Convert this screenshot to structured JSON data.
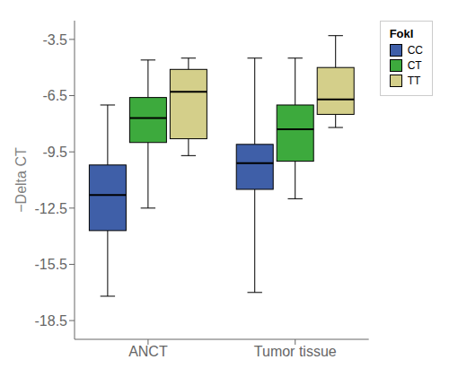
{
  "chart_data": {
    "type": "box",
    "categories": [
      "ANCT",
      "Tumor tissue"
    ],
    "series": [
      {
        "name": "CC",
        "color": "#3F5FA8",
        "values": [
          {
            "whislo": -17.2,
            "q1": -13.7,
            "med": -11.8,
            "q3": -10.2,
            "whishi": -7.0
          },
          {
            "whislo": -17.0,
            "q1": -11.5,
            "med": -10.1,
            "q3": -9.1,
            "whishi": -4.5
          }
        ]
      },
      {
        "name": "CT",
        "color": "#3DAA3D",
        "values": [
          {
            "whislo": -12.5,
            "q1": -9.0,
            "med": -7.7,
            "q3": -6.6,
            "whishi": -4.6
          },
          {
            "whislo": -12.0,
            "q1": -10.0,
            "med": -8.3,
            "q3": -7.0,
            "whishi": -4.5
          }
        ]
      },
      {
        "name": "TT",
        "color": "#D4CF8A",
        "values": [
          {
            "whislo": -9.7,
            "q1": -8.8,
            "med": -6.3,
            "q3": -5.1,
            "whishi": -4.5
          },
          {
            "whislo": -8.2,
            "q1": -7.5,
            "med": -6.7,
            "q3": -5.0,
            "whishi": -3.3
          }
        ]
      }
    ],
    "ylabel": "−Delta CT",
    "ylim": [
      -19.5,
      -2.5
    ],
    "yticks": [
      -18.5,
      -15.5,
      -12.5,
      -9.5,
      -6.5,
      -3.5
    ],
    "legend": "right",
    "legend_title": "FokI",
    "grid": false
  }
}
